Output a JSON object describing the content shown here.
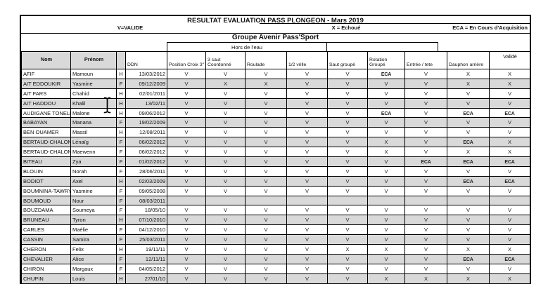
{
  "title": "RESULTAT EVALUATION PASS PLONGEON  - Mars 2019",
  "legend": {
    "v": "V=VALIDE",
    "x": "X = Echoué",
    "eca": "ECA = En Cours d'Acquisition"
  },
  "group_title": "Groupe Avenir Pass'Sport",
  "section_title": "Hors de l'eau",
  "columns": {
    "nom": "Nom",
    "prenom": "Prénom",
    "sexe": "",
    "ddn": "DDN",
    "skills": [
      "Position Croix 3\"",
      "3 saut Coordonné",
      "Roulade",
      "1/2 vrille",
      "Saut groupé",
      "Rotation Groupé",
      "Entrée / tete",
      "Dauphon arrière"
    ],
    "valide": "Validé"
  },
  "icons": {
    "cursor": "text-ibeam-cursor"
  },
  "colors": {
    "header_gray": "#d9d9d9",
    "row_alt_gray": "#d9d9d9",
    "border": "#000000",
    "background": "#ffffff"
  },
  "rows": [
    {
      "nom": "AFIF",
      "prenom": "Mamoun",
      "sexe": "H",
      "ddn": "13/03/2012",
      "results": [
        "V",
        "V",
        "V",
        "V",
        "V",
        "ECA",
        "V",
        "X",
        "X"
      ]
    },
    {
      "nom": "AIT EDDOUKIR",
      "prenom": "Yasmine",
      "sexe": "F",
      "ddn": "09/12/2009",
      "results": [
        "V",
        "X",
        "X",
        "V",
        "V",
        "V",
        "V",
        "X",
        "X"
      ]
    },
    {
      "nom": "AIT FARS",
      "prenom": "Chahid",
      "sexe": "H",
      "ddn": "02/01/2011",
      "results": [
        "V",
        "V",
        "V",
        "V",
        "V",
        "V",
        "V",
        "V",
        "V"
      ]
    },
    {
      "nom": "AIT HADDOU",
      "prenom": "Khalil",
      "sexe": "H",
      "ddn": "13/02/11",
      "results": [
        "V",
        "V",
        "V",
        "V",
        "V",
        "V",
        "V",
        "V",
        "V"
      ]
    },
    {
      "nom": "AUDIGANE TONELLO",
      "prenom": "Malone",
      "sexe": "H",
      "ddn": "09/06/2012",
      "results": [
        "V",
        "V",
        "V",
        "V",
        "V",
        "ECA",
        "V",
        "ECA",
        "ECA"
      ]
    },
    {
      "nom": "BABAYAN",
      "prenom": "Manana",
      "sexe": "F",
      "ddn": "19/02/2009",
      "results": [
        "V",
        "V",
        "V",
        "V",
        "V",
        "V",
        "V",
        "V",
        "V"
      ]
    },
    {
      "nom": "BEN OUAMER",
      "prenom": "Massil",
      "sexe": "H",
      "ddn": "12/08/2011",
      "results": [
        "V",
        "V",
        "V",
        "V",
        "V",
        "V",
        "V",
        "V",
        "V"
      ]
    },
    {
      "nom": "BERTAUD-CHALON",
      "prenom": "Lénaïg",
      "sexe": "F",
      "ddn": "06/02/2012",
      "results": [
        "V",
        "V",
        "V",
        "V",
        "V",
        "X",
        "V",
        "ECA",
        "X"
      ]
    },
    {
      "nom": "BERTAUD-CHALON",
      "prenom": "Maewenn",
      "sexe": "F",
      "ddn": "06/02/2012",
      "results": [
        "V",
        "V",
        "V",
        "V",
        "V",
        "X",
        "V",
        "X",
        "X"
      ]
    },
    {
      "nom": "BITEAU",
      "prenom": "Zya",
      "sexe": "F",
      "ddn": "01/02/2012",
      "results": [
        "V",
        "V",
        "V",
        "V",
        "V",
        "V",
        "ECA",
        "ECA",
        "ECA"
      ]
    },
    {
      "nom": "BLOUIN",
      "prenom": "Norah",
      "sexe": "F",
      "ddn": "28/06/2011",
      "results": [
        "V",
        "V",
        "V",
        "V",
        "V",
        "V",
        "V",
        "V",
        "V"
      ]
    },
    {
      "nom": "BODIOT",
      "prenom": "Axel",
      "sexe": "H",
      "ddn": "02/03/2009",
      "results": [
        "V",
        "V",
        "V",
        "V",
        "V",
        "V",
        "V",
        "ECA",
        "ECA"
      ]
    },
    {
      "nom": "BOUMNINA-TAWRY",
      "prenom": "Yasmine",
      "sexe": "F",
      "ddn": "09/05/2008",
      "results": [
        "V",
        "V",
        "V",
        "V",
        "V",
        "V",
        "V",
        "V",
        "V"
      ]
    },
    {
      "nom": "BOUMOUD",
      "prenom": "Nour",
      "sexe": "F",
      "ddn": "08/03/2011",
      "results": [
        "",
        "",
        "",
        "",
        "",
        "",
        "",
        "",
        ""
      ]
    },
    {
      "nom": "BOUZDAMA",
      "prenom": "Soumeya",
      "sexe": "F",
      "ddn": "18/05/10",
      "results": [
        "V",
        "V",
        "V",
        "V",
        "V",
        "V",
        "V",
        "V",
        "V"
      ]
    },
    {
      "nom": "BRUNEAU",
      "prenom": "Tyron",
      "sexe": "H",
      "ddn": "07/10/2010",
      "results": [
        "V",
        "V",
        "V",
        "V",
        "V",
        "V",
        "V",
        "V",
        "V"
      ]
    },
    {
      "nom": "CARLES",
      "prenom": "Maélie",
      "sexe": "F",
      "ddn": "04/12/2010",
      "results": [
        "V",
        "V",
        "V",
        "V",
        "V",
        "V",
        "V",
        "V",
        "V"
      ]
    },
    {
      "nom": "CASSIN",
      "prenom": "Samira",
      "sexe": "F",
      "ddn": "25/03/2011",
      "results": [
        "V",
        "V",
        "V",
        "V",
        "V",
        "V",
        "V",
        "V",
        "V"
      ]
    },
    {
      "nom": "CHERON",
      "prenom": "Felix",
      "sexe": "H",
      "ddn": "19/11/11",
      "results": [
        "V",
        "V",
        "V",
        "V",
        "X",
        "X",
        "V",
        "X",
        "X"
      ]
    },
    {
      "nom": "CHEVALIER",
      "prenom": "Alice",
      "sexe": "F",
      "ddn": "12/11/11",
      "results": [
        "V",
        "V",
        "V",
        "V",
        "V",
        "V",
        "V",
        "ECA",
        "ECA"
      ]
    },
    {
      "nom": "CHIRON",
      "prenom": "Margaux",
      "sexe": "F",
      "ddn": "04/05/2012",
      "results": [
        "V",
        "V",
        "V",
        "V",
        "V",
        "V",
        "V",
        "V",
        "V"
      ]
    },
    {
      "nom": "CHUPIN",
      "prenom": "Louis",
      "sexe": "H",
      "ddn": "27/01/10",
      "results": [
        "V",
        "V",
        "V",
        "V",
        "V",
        "X",
        "X",
        "X",
        "X"
      ]
    }
  ]
}
